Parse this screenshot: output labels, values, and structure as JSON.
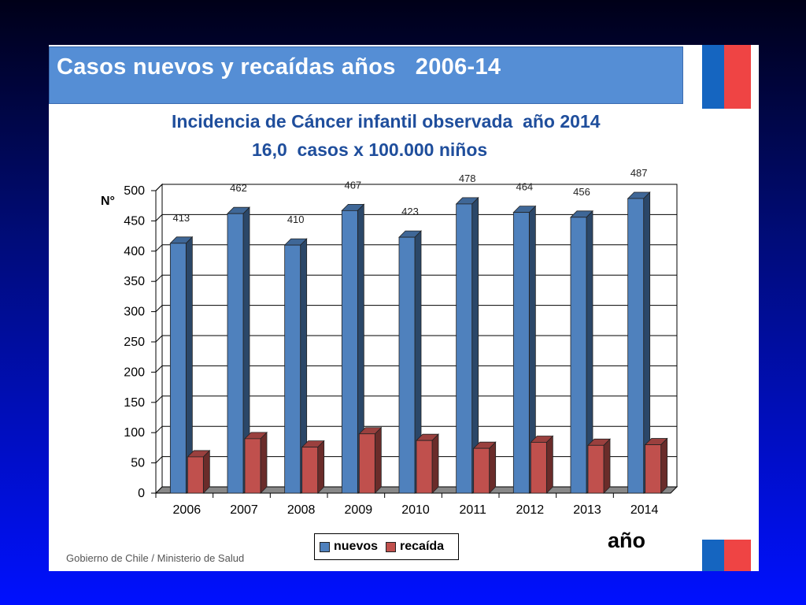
{
  "slide": {
    "title": "Casos nuevos y recaídas años   2006-14",
    "subtitle_line1": "Incidencia de Cáncer infantil observada  año 2014",
    "subtitle_line2": "16,0  casos x 100.000 niños",
    "footer": "Gobierno de Chile / Ministerio de Salud",
    "x_axis_caption": "año"
  },
  "colors": {
    "nuevos": "#4f81bd",
    "recaida": "#c0504d",
    "title_band": "#558ed5",
    "subtitle_text": "#1f4e9c"
  },
  "chart_data": {
    "type": "bar",
    "ylabel": "N°",
    "xlabel": "",
    "ylim": [
      0,
      500
    ],
    "yticks": [
      0,
      50,
      100,
      150,
      200,
      250,
      300,
      350,
      400,
      450,
      500
    ],
    "grid": true,
    "legend_position": "bottom",
    "categories": [
      "2006",
      "2007",
      "2008",
      "2009",
      "2010",
      "2011",
      "2012",
      "2013",
      "2014"
    ],
    "series": [
      {
        "name": "nuevos",
        "values": [
          413,
          462,
          410,
          467,
          423,
          478,
          464,
          456,
          487
        ],
        "data_labels": [
          "413",
          "462",
          "410",
          "467",
          "423",
          "478",
          "464",
          "456",
          "487"
        ]
      },
      {
        "name": "recaída",
        "values": [
          60,
          90,
          76,
          98,
          87,
          74,
          84,
          79,
          80
        ]
      }
    ]
  }
}
